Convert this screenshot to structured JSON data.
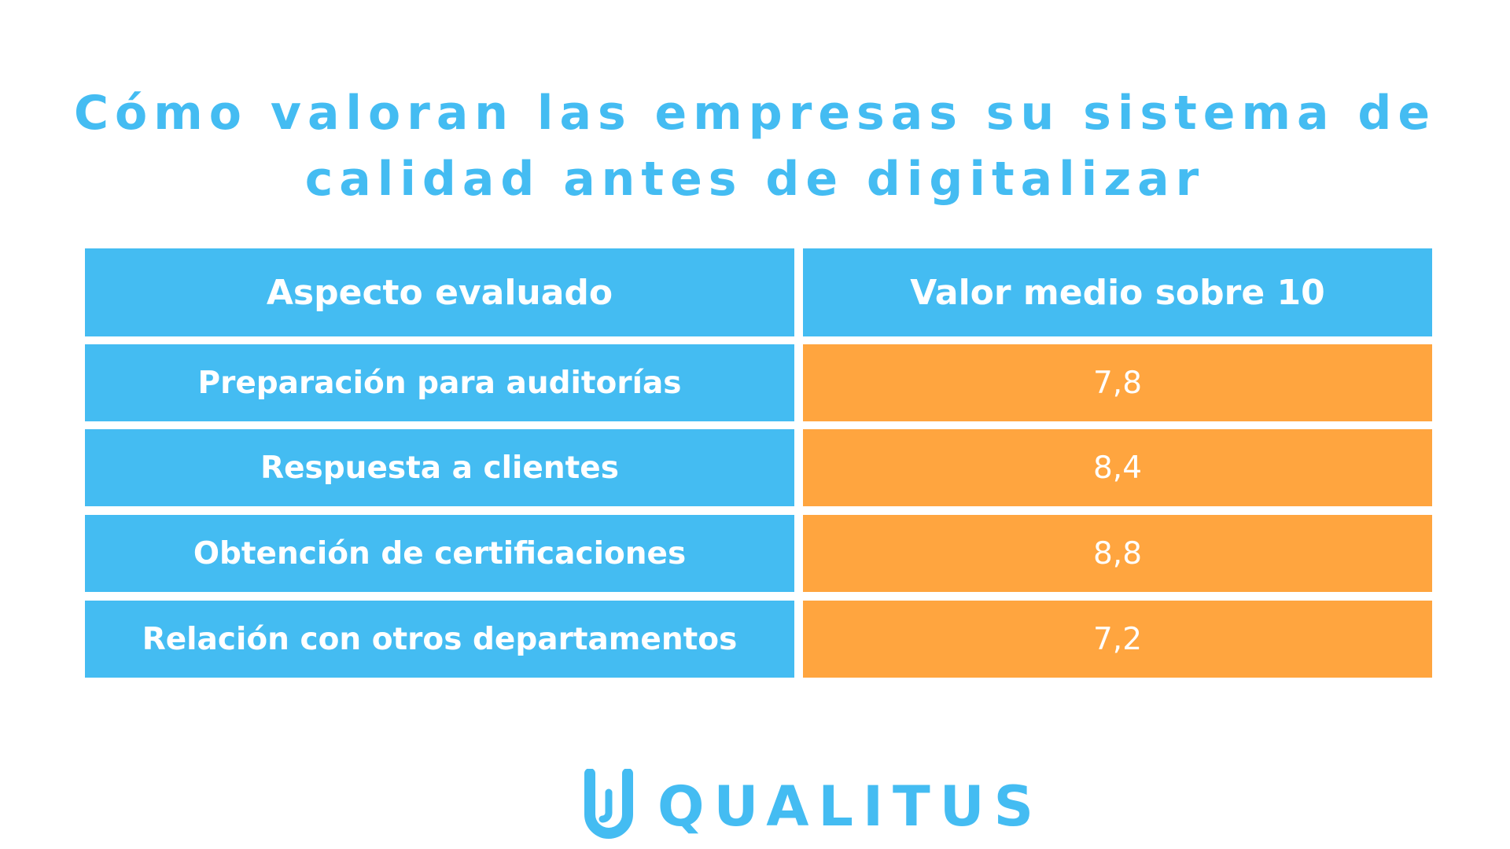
{
  "colors": {
    "title": "#44bcf2",
    "header_bg": "#44bcf2",
    "label_bg": "#44bcf2",
    "value_bg": "#ffa53f",
    "text_on_cell": "#ffffff",
    "logo": "#44bcf2"
  },
  "title": {
    "line1": "Cómo valoran las empresas su sistema de",
    "line2": "calidad antes de digitalizar"
  },
  "chart_data": {
    "type": "table",
    "title": "Cómo valoran las empresas su sistema de calidad antes de digitalizar",
    "columns": [
      "Aspecto evaluado",
      "Valor medio sobre 10"
    ],
    "rows": [
      {
        "aspect": "Preparación para auditorías",
        "value": "7,8"
      },
      {
        "aspect": "Respuesta a clientes",
        "value": "8,4"
      },
      {
        "aspect": "Obtención de certificaciones",
        "value": "8,8"
      },
      {
        "aspect": "Relación con otros departamentos",
        "value": "7,2"
      }
    ]
  },
  "logo": {
    "text": "QUALITUS",
    "icon": "qualitus-u-icon"
  }
}
